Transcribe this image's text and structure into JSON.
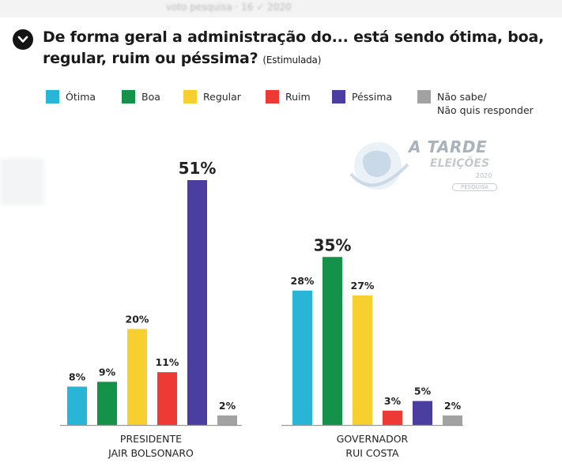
{
  "header": {
    "question": "De forma geral a administração do... está sendo ótima, boa, regular, ruim ou péssima?",
    "note": "(Estimulada)"
  },
  "watermark": {
    "title": "A TARDE",
    "subtitle": "ELEIÇÕES",
    "year": "2020",
    "tag": "PESQUISA"
  },
  "legend": [
    {
      "label": "Ótima",
      "color": "#29b6d6"
    },
    {
      "label": "Boa",
      "color": "#14924a"
    },
    {
      "label": "Regular",
      "color": "#f7cf2f"
    },
    {
      "label": "Ruim",
      "color": "#ee3a34"
    },
    {
      "label": "Péssima",
      "color": "#4a3ea0"
    },
    {
      "label": "Não sabe/\nNão quis responder",
      "color": "#a2a2a2"
    }
  ],
  "chart_data": {
    "type": "bar",
    "categories": [
      "Ótima",
      "Boa",
      "Regular",
      "Ruim",
      "Péssima",
      "Não sabe/Não quis responder"
    ],
    "groups": [
      {
        "label_line1": "PRESIDENTE",
        "label_line2": "JAIR BOLSONARO",
        "values": [
          8,
          9,
          20,
          11,
          51,
          2
        ],
        "value_labels": [
          "8%",
          "9%",
          "20%",
          "11%",
          "51%",
          "2%"
        ],
        "highlight_index": 4
      },
      {
        "label_line1": "GOVERNADOR",
        "label_line2": "RUI COSTA",
        "values": [
          28,
          35,
          27,
          3,
          5,
          2
        ],
        "value_labels": [
          "28%",
          "35%",
          "27%",
          "3%",
          "5%",
          "2%"
        ],
        "highlight_index": 1
      }
    ],
    "unit": "%",
    "ylim": [
      0,
      51
    ],
    "grid": false,
    "legend_position": "top"
  }
}
